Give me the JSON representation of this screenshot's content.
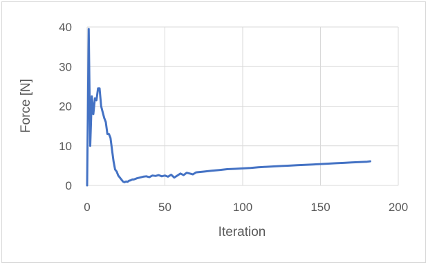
{
  "chart_data": {
    "type": "line",
    "title": "",
    "xlabel": "Iteration",
    "ylabel": "Force [N]",
    "xlim": [
      0,
      200
    ],
    "ylim": [
      0,
      40
    ],
    "x_ticks": [
      0,
      50,
      100,
      150,
      200
    ],
    "y_ticks": [
      0,
      10,
      20,
      30,
      40
    ],
    "x_tick_labels": [
      "0",
      "50",
      "100",
      "150",
      "200"
    ],
    "y_tick_labels": [
      "0",
      "10",
      "20",
      "30",
      "40"
    ],
    "grid": "major gridlines",
    "legend": "none",
    "line_color": "#4472C4",
    "series": [
      {
        "x": [
          0,
          1,
          2,
          3,
          4,
          5,
          6,
          7,
          8,
          9,
          10,
          11,
          12,
          13,
          14,
          15,
          16,
          17,
          18,
          19,
          20,
          21,
          22,
          23,
          24,
          25,
          26,
          27,
          28,
          29,
          30,
          32,
          34,
          36,
          38,
          40,
          42,
          44,
          46,
          48,
          50,
          52,
          54,
          56,
          58,
          60,
          62,
          64,
          66,
          68,
          70,
          75,
          80,
          85,
          90,
          95,
          100,
          105,
          110,
          115,
          120,
          125,
          130,
          135,
          140,
          145,
          150,
          155,
          160,
          165,
          170,
          175,
          180,
          182
        ],
        "y": [
          0,
          39.5,
          10,
          22.5,
          18,
          22,
          21.5,
          24.5,
          24.5,
          20,
          18.5,
          17,
          16,
          13,
          13,
          12,
          9,
          6,
          4,
          3.5,
          2.5,
          2,
          1.5,
          1,
          0.8,
          1,
          0.9,
          1.2,
          1.3,
          1.5,
          1.5,
          1.8,
          2,
          2.2,
          2.3,
          2.1,
          2.5,
          2.4,
          2.6,
          2.3,
          2.5,
          2.2,
          2.7,
          2,
          2.5,
          3,
          2.6,
          3.2,
          3,
          2.8,
          3.3,
          3.5,
          3.7,
          3.9,
          4.1,
          4.2,
          4.3,
          4.4,
          4.6,
          4.7,
          4.8,
          4.9,
          5,
          5.1,
          5.2,
          5.3,
          5.4,
          5.5,
          5.6,
          5.7,
          5.8,
          5.9,
          6,
          6.1
        ]
      }
    ]
  }
}
